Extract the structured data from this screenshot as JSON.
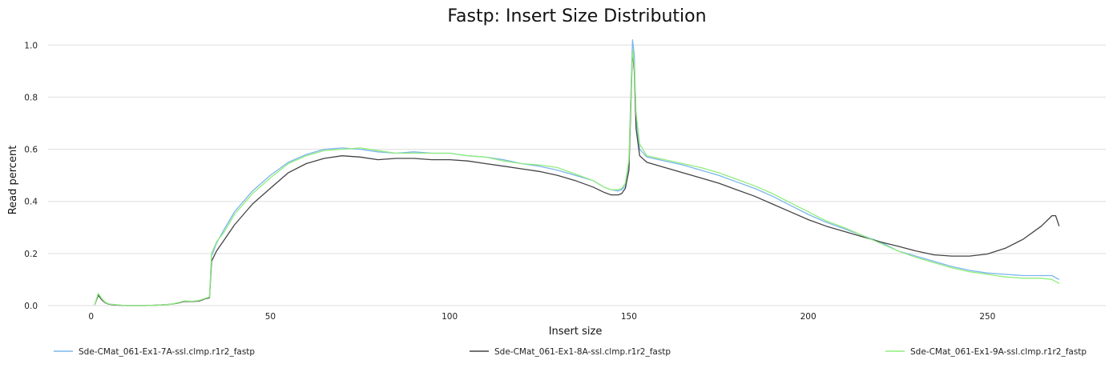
{
  "chart_data": {
    "type": "line",
    "title": "Fastp: Insert Size Distribution",
    "xlabel": "Insert size",
    "ylabel": "Read percent",
    "xlim": [
      -12,
      283
    ],
    "ylim": [
      0,
      1.05
    ],
    "xticks": [
      0,
      50,
      100,
      150,
      200,
      250
    ],
    "yticks": [
      0.0,
      0.2,
      0.4,
      0.6,
      0.8,
      1.0
    ],
    "grid": "horizontal",
    "legend_position": "bottom",
    "series": [
      {
        "name": "Sde-CMat_061-Ex1-7A-ssl.clmp.r1r2_fastp",
        "color": "#7cb5ec",
        "points": [
          [
            1,
            0.003
          ],
          [
            2,
            0.045
          ],
          [
            3,
            0.025
          ],
          [
            4,
            0.012
          ],
          [
            5,
            0.006
          ],
          [
            7,
            0.003
          ],
          [
            10,
            0.0
          ],
          [
            15,
            0.0
          ],
          [
            19,
            0.002
          ],
          [
            22,
            0.005
          ],
          [
            24,
            0.01
          ],
          [
            26,
            0.017
          ],
          [
            28,
            0.016
          ],
          [
            30,
            0.018
          ],
          [
            32,
            0.028
          ],
          [
            33,
            0.032
          ],
          [
            33.6,
            0.19
          ],
          [
            35,
            0.24
          ],
          [
            37,
            0.29
          ],
          [
            40,
            0.36
          ],
          [
            45,
            0.44
          ],
          [
            50,
            0.5
          ],
          [
            55,
            0.55
          ],
          [
            60,
            0.58
          ],
          [
            65,
            0.6
          ],
          [
            70,
            0.605
          ],
          [
            75,
            0.6
          ],
          [
            80,
            0.59
          ],
          [
            85,
            0.585
          ],
          [
            90,
            0.59
          ],
          [
            95,
            0.585
          ],
          [
            100,
            0.585
          ],
          [
            105,
            0.575
          ],
          [
            110,
            0.57
          ],
          [
            115,
            0.56
          ],
          [
            120,
            0.545
          ],
          [
            125,
            0.535
          ],
          [
            130,
            0.52
          ],
          [
            135,
            0.5
          ],
          [
            140,
            0.48
          ],
          [
            143,
            0.455
          ],
          [
            145,
            0.445
          ],
          [
            147,
            0.44
          ],
          [
            148,
            0.445
          ],
          [
            149,
            0.46
          ],
          [
            150,
            0.55
          ],
          [
            150.5,
            0.8
          ],
          [
            151,
            1.02
          ],
          [
            151.5,
            0.96
          ],
          [
            152,
            0.72
          ],
          [
            153,
            0.6
          ],
          [
            155,
            0.57
          ],
          [
            160,
            0.555
          ],
          [
            165,
            0.54
          ],
          [
            170,
            0.52
          ],
          [
            175,
            0.5
          ],
          [
            180,
            0.475
          ],
          [
            185,
            0.45
          ],
          [
            190,
            0.42
          ],
          [
            195,
            0.385
          ],
          [
            200,
            0.35
          ],
          [
            205,
            0.32
          ],
          [
            210,
            0.295
          ],
          [
            215,
            0.27
          ],
          [
            220,
            0.245
          ],
          [
            225,
            0.21
          ],
          [
            230,
            0.19
          ],
          [
            235,
            0.17
          ],
          [
            240,
            0.15
          ],
          [
            245,
            0.135
          ],
          [
            250,
            0.125
          ],
          [
            255,
            0.12
          ],
          [
            260,
            0.115
          ],
          [
            265,
            0.115
          ],
          [
            268,
            0.115
          ],
          [
            270,
            0.1
          ]
        ]
      },
      {
        "name": "Sde-CMat_061-Ex1-8A-ssl.clmp.r1r2_fastp",
        "color": "#434348",
        "points": [
          [
            1,
            0.003
          ],
          [
            2,
            0.04
          ],
          [
            3,
            0.022
          ],
          [
            4,
            0.01
          ],
          [
            5,
            0.005
          ],
          [
            7,
            0.002
          ],
          [
            10,
            0.0
          ],
          [
            15,
            0.0
          ],
          [
            19,
            0.002
          ],
          [
            22,
            0.005
          ],
          [
            24,
            0.009
          ],
          [
            26,
            0.016
          ],
          [
            28,
            0.016
          ],
          [
            30,
            0.017
          ],
          [
            32,
            0.027
          ],
          [
            33,
            0.03
          ],
          [
            33.6,
            0.17
          ],
          [
            35,
            0.21
          ],
          [
            37,
            0.25
          ],
          [
            40,
            0.31
          ],
          [
            45,
            0.39
          ],
          [
            50,
            0.45
          ],
          [
            55,
            0.51
          ],
          [
            60,
            0.545
          ],
          [
            65,
            0.565
          ],
          [
            70,
            0.575
          ],
          [
            75,
            0.57
          ],
          [
            80,
            0.56
          ],
          [
            85,
            0.565
          ],
          [
            90,
            0.565
          ],
          [
            95,
            0.56
          ],
          [
            100,
            0.56
          ],
          [
            105,
            0.555
          ],
          [
            110,
            0.545
          ],
          [
            115,
            0.535
          ],
          [
            120,
            0.525
          ],
          [
            125,
            0.515
          ],
          [
            130,
            0.5
          ],
          [
            135,
            0.48
          ],
          [
            140,
            0.455
          ],
          [
            143,
            0.435
          ],
          [
            145,
            0.425
          ],
          [
            147,
            0.425
          ],
          [
            148,
            0.43
          ],
          [
            149,
            0.45
          ],
          [
            150,
            0.52
          ],
          [
            150.5,
            0.75
          ],
          [
            151,
            0.98
          ],
          [
            151.5,
            0.9
          ],
          [
            152,
            0.68
          ],
          [
            153,
            0.575
          ],
          [
            155,
            0.55
          ],
          [
            160,
            0.53
          ],
          [
            165,
            0.51
          ],
          [
            170,
            0.49
          ],
          [
            175,
            0.47
          ],
          [
            180,
            0.445
          ],
          [
            185,
            0.42
          ],
          [
            190,
            0.39
          ],
          [
            195,
            0.36
          ],
          [
            200,
            0.33
          ],
          [
            205,
            0.305
          ],
          [
            210,
            0.285
          ],
          [
            215,
            0.265
          ],
          [
            220,
            0.245
          ],
          [
            225,
            0.228
          ],
          [
            230,
            0.21
          ],
          [
            235,
            0.195
          ],
          [
            240,
            0.19
          ],
          [
            245,
            0.19
          ],
          [
            250,
            0.198
          ],
          [
            255,
            0.22
          ],
          [
            260,
            0.255
          ],
          [
            265,
            0.305
          ],
          [
            268,
            0.345
          ],
          [
            269,
            0.345
          ],
          [
            270,
            0.305
          ]
        ]
      },
      {
        "name": "Sde-CMat_061-Ex1-9A-ssl.clmp.r1r2_fastp",
        "color": "#90ed7d",
        "points": [
          [
            1,
            0.003
          ],
          [
            2,
            0.047
          ],
          [
            3,
            0.026
          ],
          [
            4,
            0.012
          ],
          [
            5,
            0.006
          ],
          [
            7,
            0.003
          ],
          [
            10,
            0.0
          ],
          [
            15,
            0.0
          ],
          [
            19,
            0.002
          ],
          [
            22,
            0.005
          ],
          [
            24,
            0.01
          ],
          [
            26,
            0.018
          ],
          [
            28,
            0.017
          ],
          [
            30,
            0.019
          ],
          [
            32,
            0.029
          ],
          [
            33,
            0.033
          ],
          [
            33.6,
            0.2
          ],
          [
            35,
            0.245
          ],
          [
            37,
            0.28
          ],
          [
            40,
            0.35
          ],
          [
            45,
            0.43
          ],
          [
            50,
            0.49
          ],
          [
            55,
            0.545
          ],
          [
            60,
            0.575
          ],
          [
            65,
            0.595
          ],
          [
            70,
            0.6
          ],
          [
            75,
            0.605
          ],
          [
            80,
            0.595
          ],
          [
            85,
            0.585
          ],
          [
            90,
            0.585
          ],
          [
            95,
            0.585
          ],
          [
            100,
            0.585
          ],
          [
            105,
            0.575
          ],
          [
            110,
            0.57
          ],
          [
            115,
            0.555
          ],
          [
            120,
            0.545
          ],
          [
            125,
            0.54
          ],
          [
            130,
            0.53
          ],
          [
            135,
            0.505
          ],
          [
            140,
            0.48
          ],
          [
            143,
            0.455
          ],
          [
            145,
            0.445
          ],
          [
            147,
            0.445
          ],
          [
            148,
            0.45
          ],
          [
            149,
            0.47
          ],
          [
            150,
            0.56
          ],
          [
            150.5,
            0.78
          ],
          [
            151,
            0.98
          ],
          [
            151.5,
            0.92
          ],
          [
            152,
            0.74
          ],
          [
            153,
            0.62
          ],
          [
            155,
            0.575
          ],
          [
            160,
            0.56
          ],
          [
            165,
            0.545
          ],
          [
            170,
            0.53
          ],
          [
            175,
            0.51
          ],
          [
            180,
            0.485
          ],
          [
            185,
            0.46
          ],
          [
            190,
            0.43
          ],
          [
            195,
            0.395
          ],
          [
            200,
            0.36
          ],
          [
            205,
            0.325
          ],
          [
            210,
            0.3
          ],
          [
            215,
            0.27
          ],
          [
            220,
            0.24
          ],
          [
            225,
            0.21
          ],
          [
            230,
            0.185
          ],
          [
            235,
            0.165
          ],
          [
            240,
            0.145
          ],
          [
            245,
            0.13
          ],
          [
            250,
            0.12
          ],
          [
            255,
            0.11
          ],
          [
            260,
            0.105
          ],
          [
            265,
            0.105
          ],
          [
            268,
            0.1
          ],
          [
            270,
            0.085
          ]
        ]
      }
    ]
  }
}
